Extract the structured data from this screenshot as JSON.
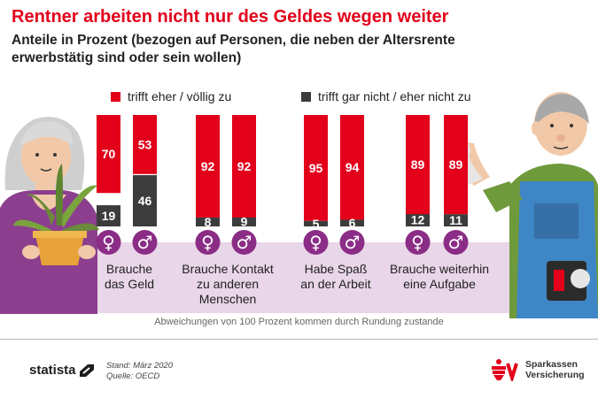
{
  "header": {
    "title": "Rentner arbeiten nicht nur des Geldes wegen weiter",
    "subtitle": "Anteile in Prozent (bezogen auf Personen, die neben der Altersrente erwerbstätig sind oder sein wollen)"
  },
  "legend": [
    {
      "label": "trifft eher  / völlig zu",
      "color": "#e2001a"
    },
    {
      "label": "trifft gar nicht  /  eher nicht zu",
      "color": "#3c3c3c"
    }
  ],
  "colors": {
    "agree": "#e2001a",
    "disagree": "#3c3c3c",
    "gender_icon": "#8b2d86",
    "band": "#e9d6e9"
  },
  "chart_data": {
    "type": "bar",
    "stacked": true,
    "categories": [
      "Brauche das Geld",
      "Brauche Kontakt zu anderen Menschen",
      "Habe Spaß an der Arbeit",
      "Brauche weiterhin eine Aufgabe"
    ],
    "groups": [
      "♀",
      "♂"
    ],
    "series": [
      {
        "name": "trifft eher  / völlig zu",
        "values": [
          [
            70,
            53
          ],
          [
            92,
            92
          ],
          [
            95,
            94
          ],
          [
            89,
            89
          ]
        ]
      },
      {
        "name": "trifft gar nicht  /  eher nicht zu",
        "values": [
          [
            19,
            46
          ],
          [
            8,
            9
          ],
          [
            5,
            6
          ],
          [
            12,
            11
          ]
        ]
      }
    ],
    "ylim": [
      0,
      100
    ]
  },
  "category_labels": [
    {
      "line1": "Brauche",
      "line2": "das Geld",
      "line3": ""
    },
    {
      "line1": "Brauche Kontakt",
      "line2": "zu anderen",
      "line3": "Menschen"
    },
    {
      "line1": "Habe Spaß",
      "line2": "an der Arbeit",
      "line3": ""
    },
    {
      "line1": "Brauche weiterhin",
      "line2": "eine Aufgabe",
      "line3": ""
    }
  ],
  "note": "Abweichungen von 100 Prozent kommen durch Rundung zustande",
  "footer": {
    "brand": "statista",
    "stand": "Stand: März 2020",
    "quelle": "Quelle: OECD",
    "sponsor_line1": "Sparkassen",
    "sponsor_line2": "Versicherung"
  }
}
